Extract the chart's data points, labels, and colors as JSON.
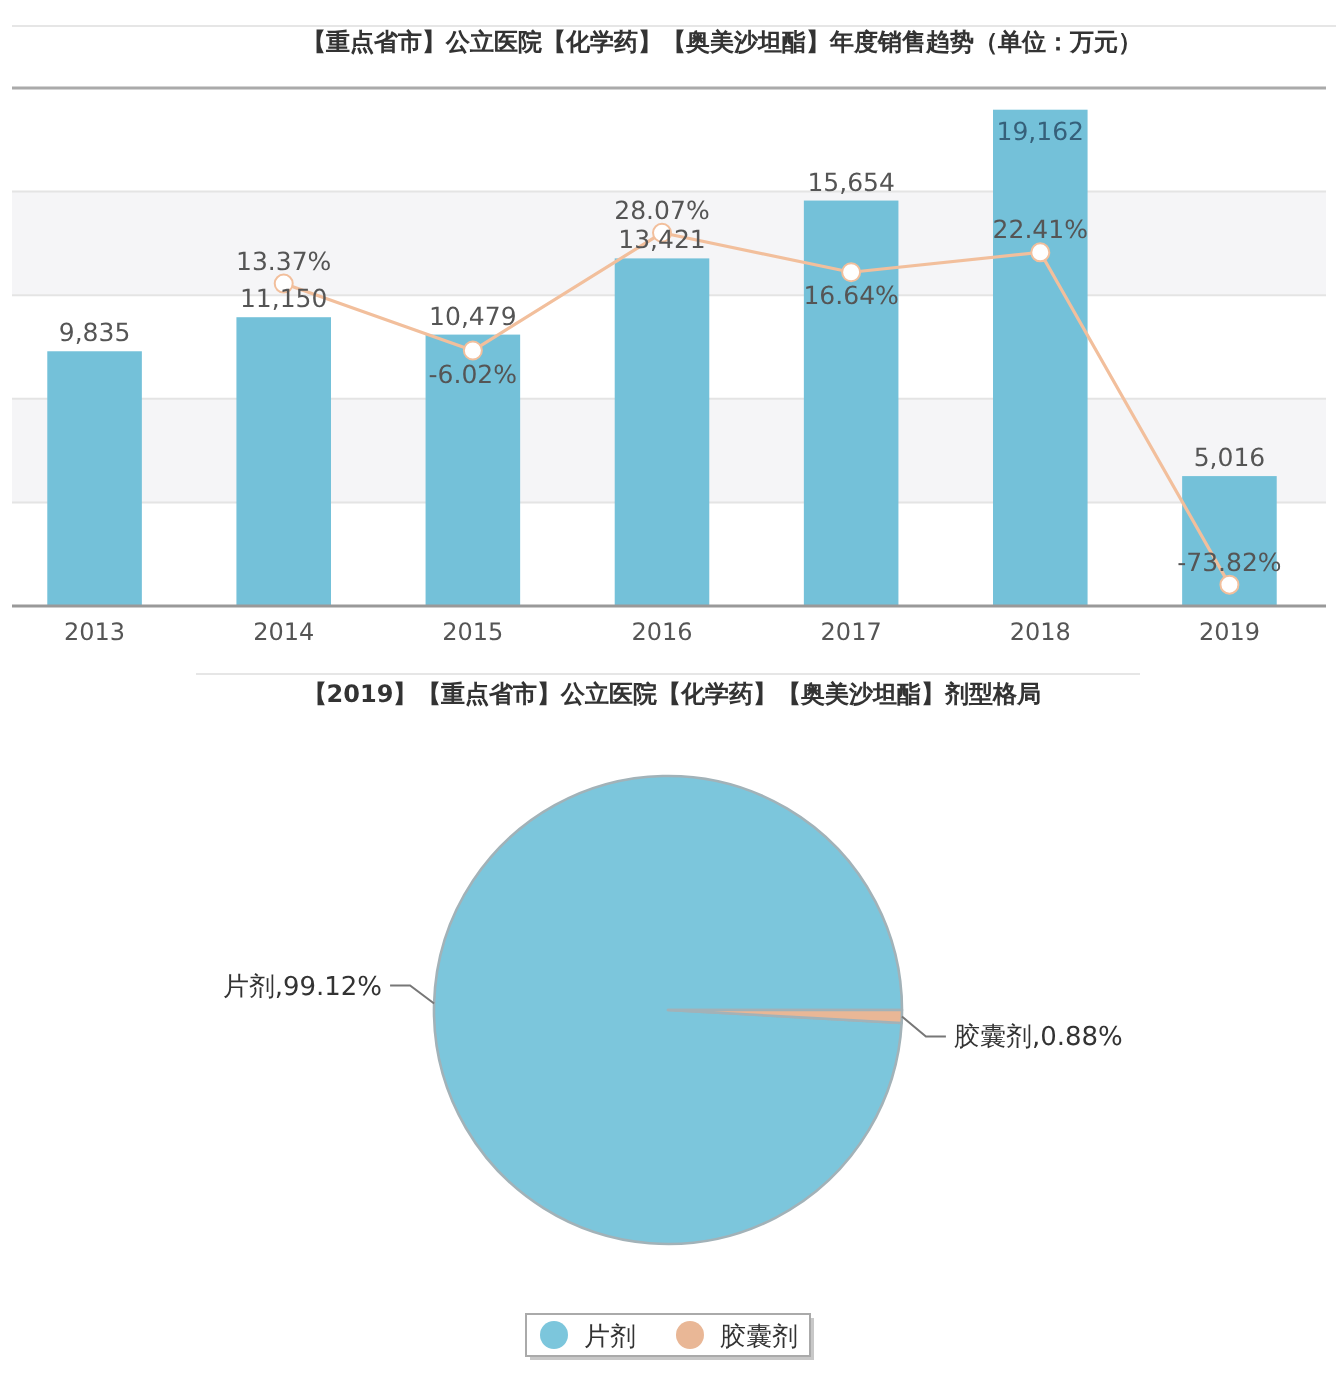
{
  "chart_data": [
    {
      "type": "bar",
      "title": "【重点省市】公立医院【化学药】【奥美沙坦酯】年度销售趋势（单位：万元）",
      "categories": [
        "2013",
        "2014",
        "2015",
        "2016",
        "2017",
        "2018",
        "2019"
      ],
      "ylim": [
        0,
        20000
      ],
      "yticks": [
        {
          "value": 0,
          "label": null
        },
        {
          "value": 4000,
          "label": null
        },
        {
          "value": 8000,
          "label": null
        },
        {
          "value": 12000,
          "label": null
        },
        {
          "value": 16000,
          "label": null
        },
        {
          "value": 20000,
          "label": null
        }
      ],
      "y2lim": [
        -80,
        70
      ],
      "tick_labels": "x",
      "grid": "y",
      "marker": "circle",
      "series": [
        {
          "type": "bar",
          "color": "#74c1d9",
          "values": [
            9835,
            11150,
            10479,
            13421,
            15654,
            19162,
            5016
          ],
          "value_labels": [
            "9,835",
            "11,150",
            "10,479",
            "13,421",
            "15,654",
            "19,162",
            "5,016"
          ]
        },
        {
          "type": "line",
          "axis": "y2",
          "color": "#f2bf9c",
          "values": [
            null,
            13.37,
            -6.02,
            28.07,
            16.64,
            22.41,
            -73.82
          ],
          "value_labels": [
            null,
            "13.37%",
            "-6.02%",
            "28.07%",
            "16.64%",
            "22.41%",
            "-73.82%"
          ]
        }
      ]
    },
    {
      "type": "pie",
      "title": "【2019】【重点省市】公立医院【化学药】【奥美沙坦酯】剂型格局",
      "categories": [
        "片剂",
        "胶囊剂"
      ],
      "values": [
        99.12,
        0.88
      ],
      "colors": [
        "#7cc6dc",
        "#e9b796"
      ],
      "value_labels": [
        "片剂,99.12%",
        "胶囊剂,0.88%"
      ],
      "legend": "bottom"
    }
  ]
}
